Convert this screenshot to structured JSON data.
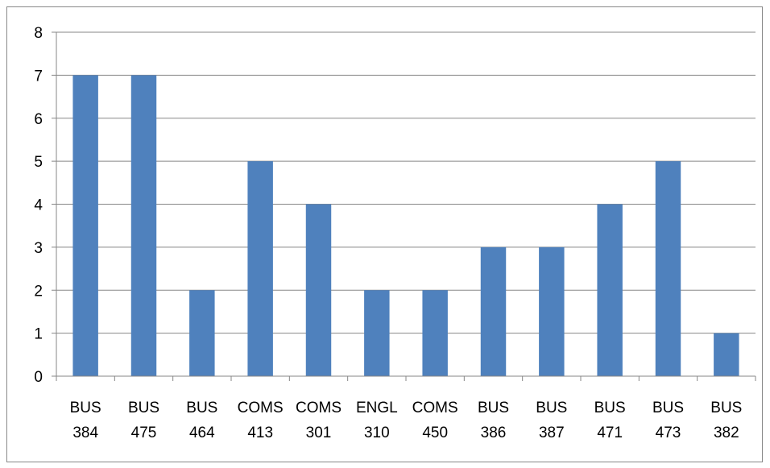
{
  "chart_data": {
    "type": "bar",
    "categories": [
      [
        "BUS",
        "384"
      ],
      [
        "BUS",
        "475"
      ],
      [
        "BUS",
        "464"
      ],
      [
        "COMS",
        "413"
      ],
      [
        "COMS",
        "301"
      ],
      [
        "ENGL",
        "310"
      ],
      [
        "COMS",
        "450"
      ],
      [
        "BUS",
        "386"
      ],
      [
        "BUS",
        "387"
      ],
      [
        "BUS",
        "471"
      ],
      [
        "BUS",
        "473"
      ],
      [
        "BUS",
        "382"
      ]
    ],
    "values": [
      7,
      7,
      2,
      5,
      4,
      2,
      2,
      3,
      3,
      4,
      5,
      1
    ],
    "y_ticks": [
      "0",
      "1",
      "2",
      "3",
      "4",
      "5",
      "6",
      "7",
      "8"
    ],
    "ylim": [
      0,
      8
    ],
    "grid": true,
    "legend": "none",
    "title": "",
    "xlabel": "",
    "ylabel": "",
    "colors": {
      "bar": "#4F81BD",
      "grid": "#878787",
      "axis": "#878787"
    }
  }
}
